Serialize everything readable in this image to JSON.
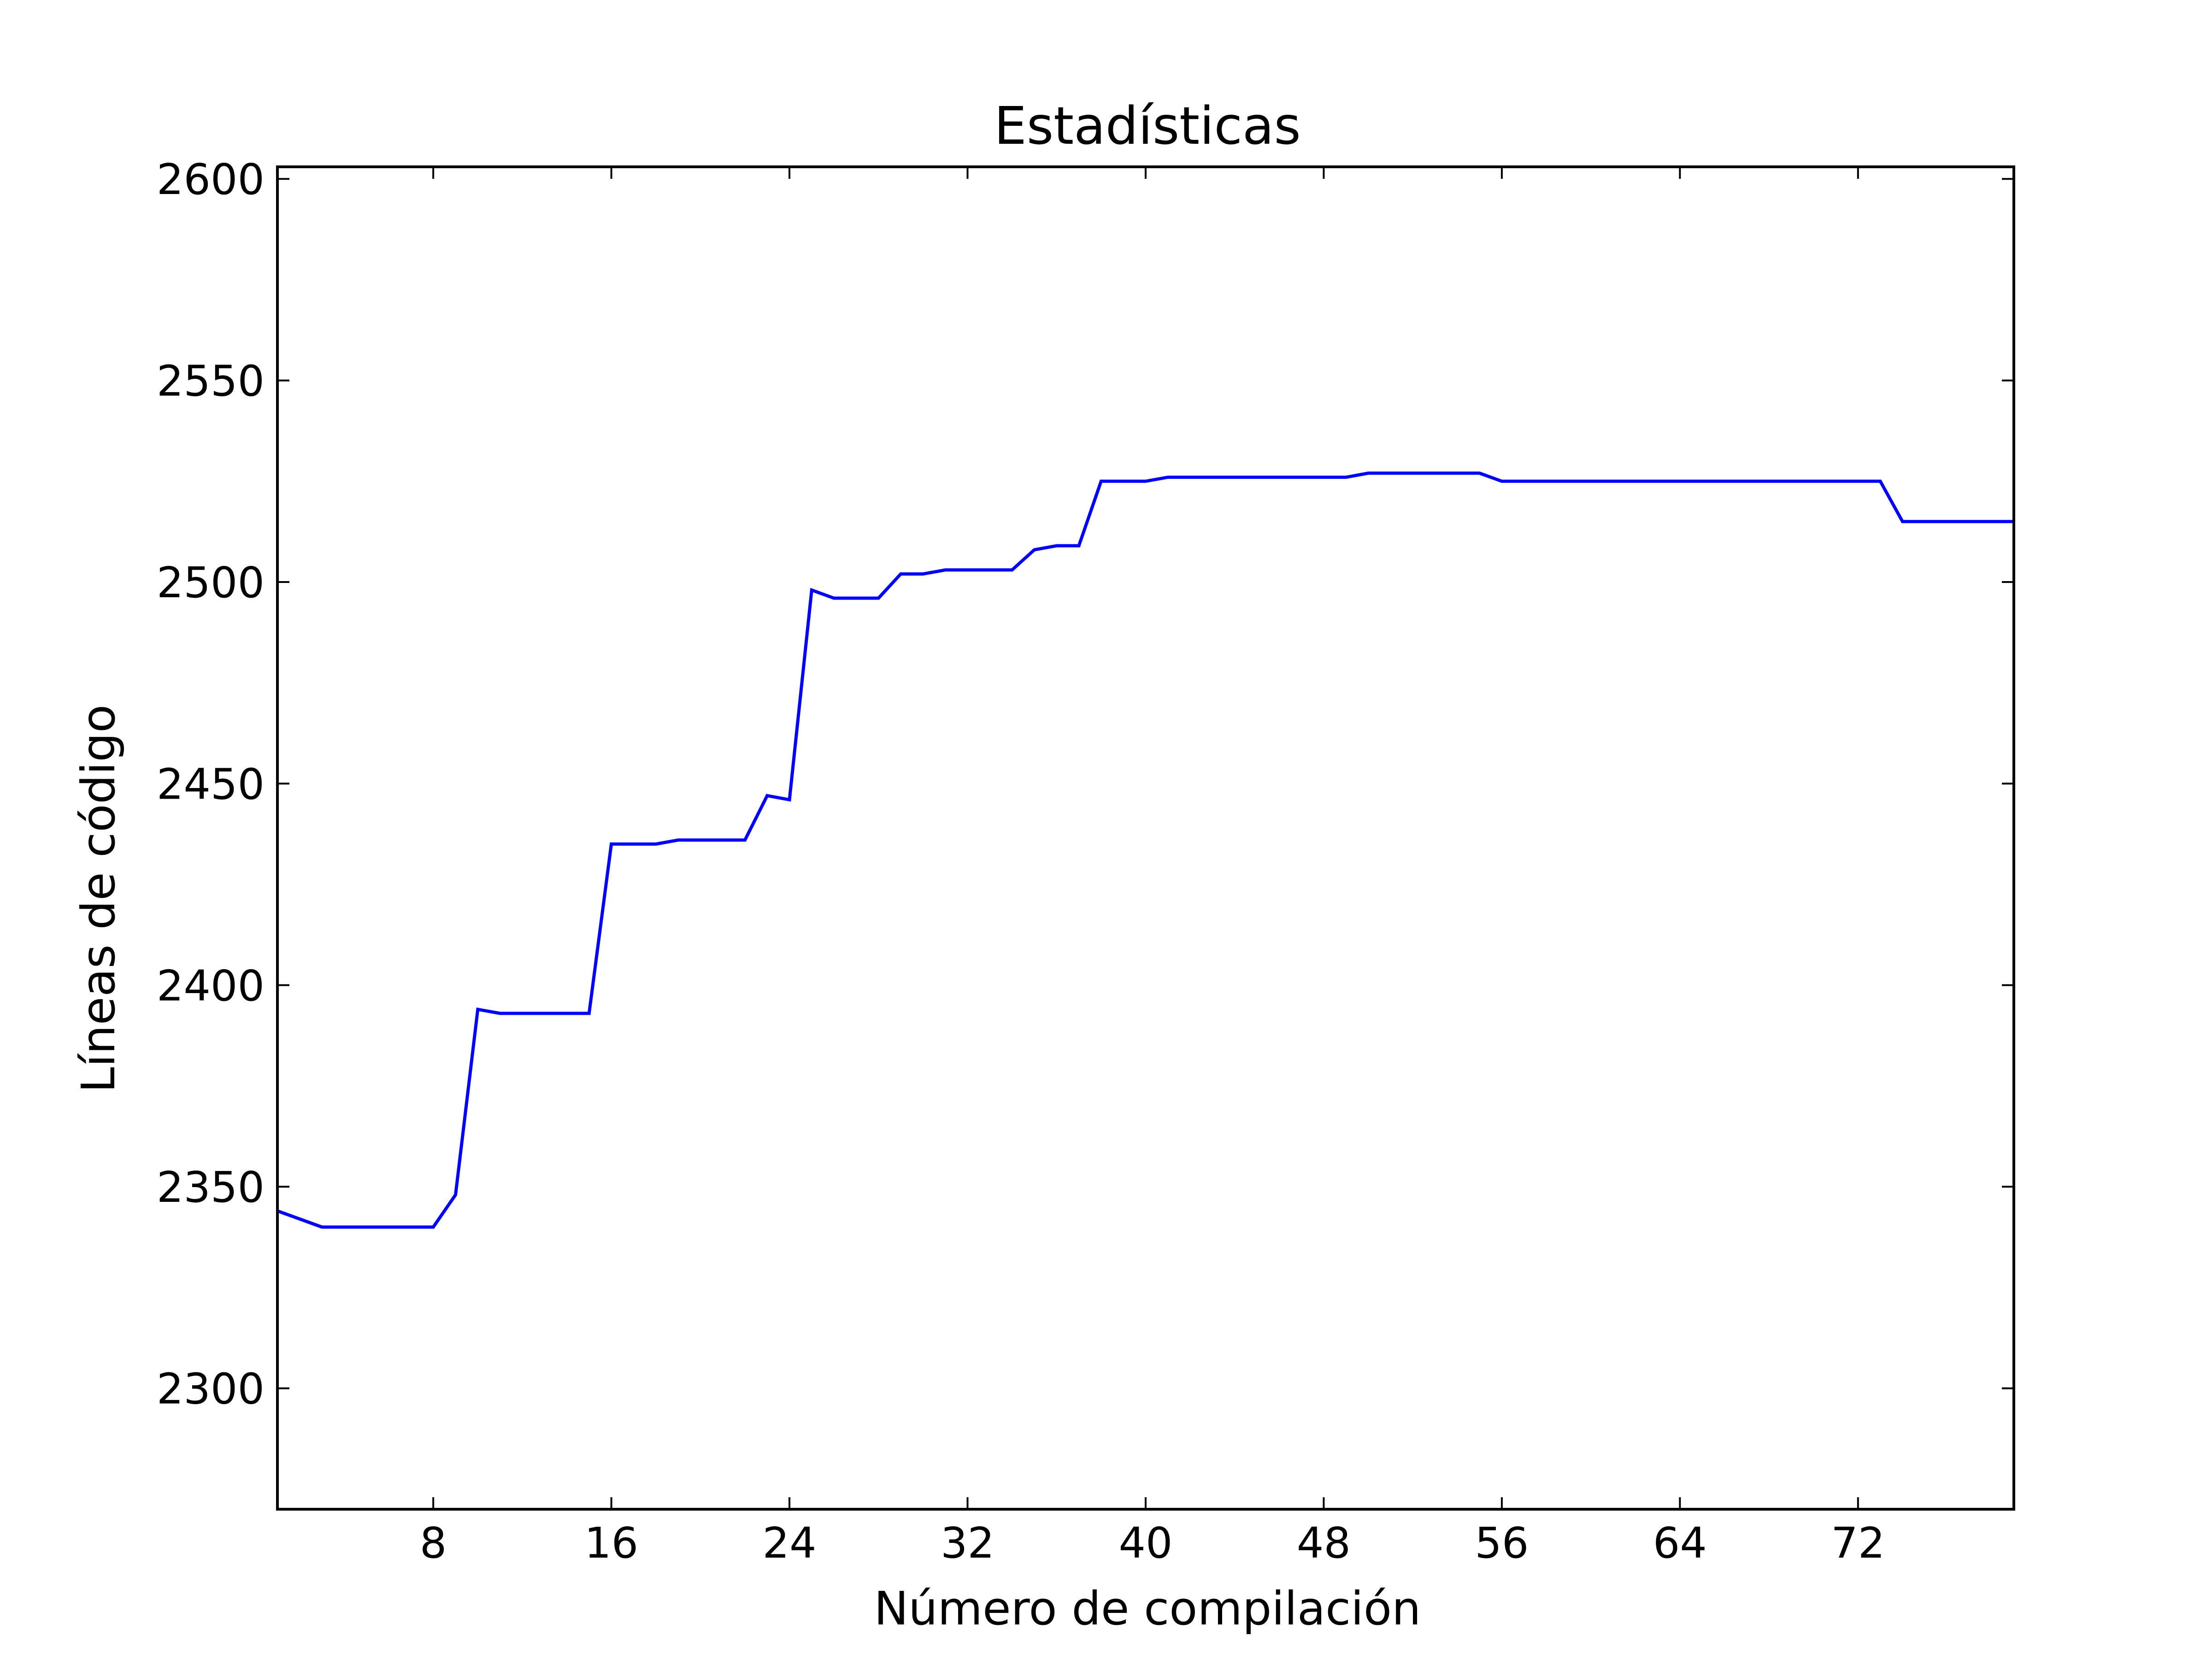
{
  "chart_data": {
    "type": "line",
    "title": "Estadísticas",
    "xlabel": "Número de compilación",
    "ylabel": "Líneas de código",
    "xlim": [
      1,
      79
    ],
    "ylim": [
      2270,
      2603
    ],
    "xticks": [
      8,
      16,
      24,
      32,
      40,
      48,
      56,
      64,
      72
    ],
    "yticks": [
      2300,
      2350,
      2400,
      2450,
      2500,
      2550,
      2600
    ],
    "grid": false,
    "colors": {
      "series": "#0000ff",
      "axes": "#000000",
      "background": "#ffffff"
    },
    "series": [
      {
        "x": [
          1,
          2,
          3,
          4,
          5,
          6,
          7,
          8,
          9,
          10,
          11,
          12,
          13,
          14,
          15,
          16,
          17,
          18,
          19,
          20,
          21,
          22,
          23,
          24,
          25,
          26,
          27,
          28,
          29,
          30,
          31,
          32,
          33,
          34,
          35,
          36,
          37,
          38,
          39,
          40,
          41,
          42,
          43,
          44,
          45,
          46,
          47,
          48,
          49,
          50,
          51,
          52,
          53,
          54,
          55,
          56,
          57,
          58,
          59,
          60,
          61,
          62,
          63,
          64,
          65,
          66,
          67,
          68,
          69,
          70,
          71,
          72,
          73,
          74,
          75,
          76,
          77,
          78,
          79
        ],
        "values": [
          2344,
          2342,
          2340,
          2340,
          2340,
          2340,
          2340,
          2340,
          2348,
          2394,
          2393,
          2393,
          2393,
          2393,
          2393,
          2435,
          2435,
          2435,
          2436,
          2436,
          2436,
          2436,
          2447,
          2446,
          2498,
          2496,
          2496,
          2496,
          2502,
          2502,
          2503,
          2503,
          2503,
          2503,
          2508,
          2509,
          2509,
          2525,
          2525,
          2525,
          2526,
          2526,
          2526,
          2526,
          2526,
          2526,
          2526,
          2526,
          2526,
          2527,
          2527,
          2527,
          2527,
          2527,
          2527,
          2525,
          2525,
          2525,
          2525,
          2525,
          2525,
          2525,
          2525,
          2525,
          2525,
          2525,
          2525,
          2525,
          2525,
          2525,
          2525,
          2525,
          2525,
          2515,
          2515,
          2515,
          2515,
          2515,
          2515
        ]
      }
    ]
  }
}
